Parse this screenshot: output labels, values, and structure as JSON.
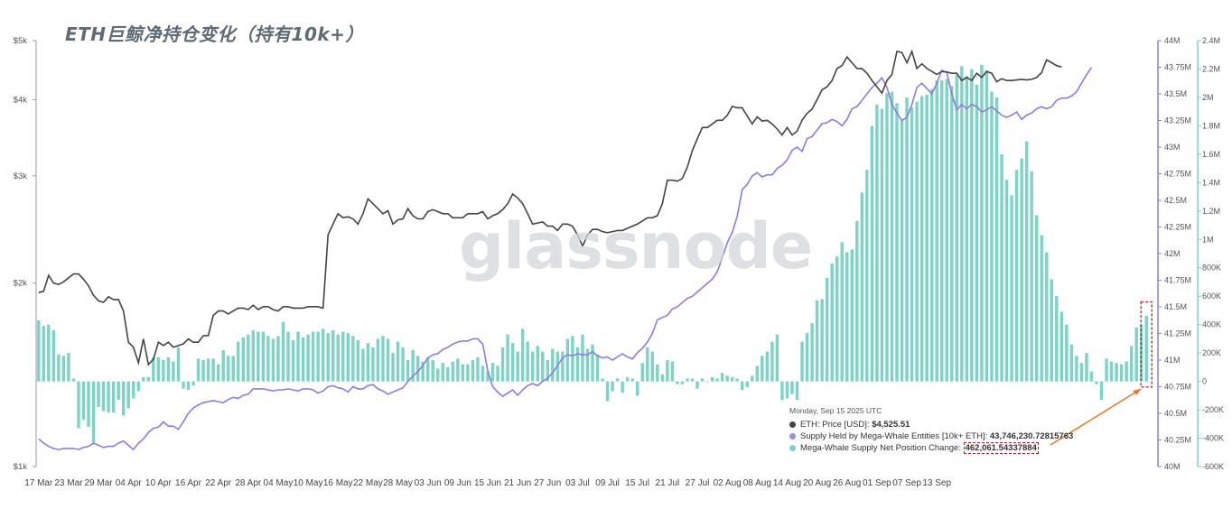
{
  "title": "ETH巨鲸净持仓变化（持有10k+）",
  "watermark": "glassnode",
  "tooltip": {
    "date": "Monday, Sep 15 2025 UTC",
    "rows": [
      {
        "label": "ETH: Price [USD]: ",
        "value": "$4,525.51",
        "color": "#444444"
      },
      {
        "label": "Supply Held by Mega-Whale Entities [10k+ ETH]: ",
        "value": "43,746,230.72815763",
        "color": "#9b8fe0"
      },
      {
        "label": "Mega-Whale Supply Net Position Change: ",
        "value": "462,061.54337884",
        "color": "#7ed3c5"
      }
    ]
  },
  "colors": {
    "price": "#444444",
    "supply": "#8b7de0",
    "bars": "#7ed3c5",
    "highlight": "#b22222",
    "arrow": "#e8772e"
  },
  "chart_data": {
    "type": "bar",
    "x_tick_labels": [
      "17 Mar",
      "23 Mar",
      "29 Mar",
      "04 Apr",
      "10 Apr",
      "16 Apr",
      "22 Apr",
      "28 Apr",
      "04 May",
      "10 May",
      "16 May",
      "22 May",
      "28 May",
      "03 Jun",
      "09 Jun",
      "15 Jun",
      "21 Jun",
      "27 Jun",
      "03 Jul",
      "09 Jul",
      "15 Jul",
      "21 Jul",
      "27 Jul",
      "02 Aug",
      "08 Aug",
      "14 Aug",
      "20 Aug",
      "26 Aug",
      "01 Sep",
      "07 Sep",
      "13 Sep"
    ],
    "price_axis": {
      "scale": "log",
      "ticks": [
        "$1k",
        "$2k",
        "$3k",
        "$4k",
        "$5k"
      ],
      "tick_values": [
        1000,
        2000,
        3000,
        4000,
        5000
      ]
    },
    "supply_axis": {
      "ticks": [
        "40M",
        "40.25M",
        "40.5M",
        "40.75M",
        "41M",
        "41.25M",
        "41.5M",
        "41.75M",
        "42M",
        "42.25M",
        "42.5M",
        "42.75M",
        "43M",
        "43.25M",
        "43.5M",
        "43.75M",
        "44M"
      ],
      "range": [
        40000000,
        44000000
      ]
    },
    "change_axis": {
      "ticks": [
        "-600K",
        "-400K",
        "-200K",
        "0",
        "200K",
        "400K",
        "600K",
        "800K",
        "1M",
        "1.2M",
        "1.4M",
        "1.6M",
        "1.8M",
        "2M",
        "2.2M",
        "2.4M"
      ],
      "range": [
        -600000,
        2400000
      ]
    },
    "series": [
      {
        "name": "ETH: Price [USD]",
        "kind": "line",
        "values": [
          1930,
          1940,
          2060,
          2000,
          1990,
          2010,
          2040,
          2070,
          2070,
          2030,
          1980,
          1910,
          1870,
          1860,
          1900,
          1880,
          1880,
          1800,
          1600,
          1570,
          1480,
          1620,
          1470,
          1500,
          1600,
          1580,
          1600,
          1570,
          1580,
          1590,
          1620,
          1600,
          1600,
          1640,
          1640,
          1770,
          1800,
          1800,
          1780,
          1800,
          1820,
          1820,
          1810,
          1840,
          1810,
          1830,
          1830,
          1810,
          1800,
          1830,
          1830,
          1820,
          1820,
          1820,
          1830,
          1830,
          1830,
          1820,
          2400,
          2500,
          2600,
          2560,
          2570,
          2550,
          2500,
          2600,
          2750,
          2700,
          2650,
          2600,
          2630,
          2500,
          2540,
          2550,
          2650,
          2580,
          2550,
          2550,
          2620,
          2640,
          2620,
          2600,
          2600,
          2560,
          2560,
          2560,
          2600,
          2600,
          2600,
          2620,
          2550,
          2580,
          2600,
          2640,
          2700,
          2800,
          2760,
          2700,
          2600,
          2500,
          2510,
          2520,
          2480,
          2480,
          2440,
          2500,
          2500,
          2480,
          2400,
          2300,
          2400,
          2450,
          2450,
          2430,
          2420,
          2430,
          2440,
          2440,
          2460,
          2480,
          2500,
          2530,
          2560,
          2560,
          2580,
          2700,
          2950,
          2950,
          2940,
          2970,
          3100,
          3300,
          3450,
          3600,
          3600,
          3650,
          3700,
          3700,
          3770,
          3900,
          3880,
          3880,
          3760,
          3650,
          3750,
          3690,
          3700,
          3650,
          3580,
          3500,
          3600,
          3500,
          3550,
          3700,
          3800,
          3860,
          4000,
          4150,
          4200,
          4300,
          4500,
          4550,
          4700,
          4600,
          4500,
          4500,
          4420,
          4300,
          4200,
          4100,
          4300,
          4400,
          4800,
          4780,
          4600,
          4800,
          4500,
          4580,
          4500,
          4450,
          4400,
          4450,
          4440,
          4420,
          4420,
          4300,
          4350,
          4300,
          4420,
          4350,
          4450,
          4420,
          4280,
          4330,
          4300,
          4300,
          4310,
          4320,
          4310,
          4320,
          4350,
          4430,
          4650,
          4600,
          4550,
          4525.51
        ]
      },
      {
        "name": "Supply Held by Mega-Whale Entities [10k+ ETH]",
        "kind": "line",
        "values": [
          40260000,
          40220000,
          40190000,
          40170000,
          40160000,
          40170000,
          40170000,
          40170000,
          40160000,
          40180000,
          40190000,
          40220000,
          40200000,
          40180000,
          40190000,
          40190000,
          40220000,
          40240000,
          40200000,
          40160000,
          40220000,
          40260000,
          40320000,
          40360000,
          40370000,
          40420000,
          40380000,
          40380000,
          40350000,
          40420000,
          40500000,
          40550000,
          40580000,
          40600000,
          40610000,
          40620000,
          40610000,
          40600000,
          40630000,
          40650000,
          40640000,
          40670000,
          40680000,
          40730000,
          40730000,
          40730000,
          40720000,
          40710000,
          40720000,
          40720000,
          40730000,
          40720000,
          40710000,
          40730000,
          40730000,
          40720000,
          40690000,
          40710000,
          40750000,
          40760000,
          40740000,
          40730000,
          40700000,
          40750000,
          40730000,
          40730000,
          40760000,
          40770000,
          40730000,
          40710000,
          40680000,
          40700000,
          40720000,
          40740000,
          40800000,
          40850000,
          40890000,
          40950000,
          41020000,
          41050000,
          41060000,
          41100000,
          41120000,
          41150000,
          41170000,
          41180000,
          41180000,
          41200000,
          41200000,
          41150000,
          40900000,
          40750000,
          40700000,
          40660000,
          40690000,
          40720000,
          40670000,
          40720000,
          40760000,
          40780000,
          40760000,
          40800000,
          40830000,
          40880000,
          40950000,
          41020000,
          41050000,
          41040000,
          41060000,
          41050000,
          41050000,
          41080000,
          41040000,
          41020000,
          41030000,
          41000000,
          41030000,
          41060000,
          41030000,
          41010000,
          41070000,
          41110000,
          41170000,
          41250000,
          41380000,
          41400000,
          41420000,
          41480000,
          41500000,
          41540000,
          41580000,
          41600000,
          41640000,
          41680000,
          41720000,
          41760000,
          41830000,
          41960000,
          42100000,
          42200000,
          42350000,
          42600000,
          42650000,
          42730000,
          42760000,
          42720000,
          42740000,
          42740000,
          42800000,
          42830000,
          42880000,
          42970000,
          43000000,
          42960000,
          43080000,
          43100000,
          43160000,
          43220000,
          43230000,
          43260000,
          43240000,
          43200000,
          43260000,
          43360000,
          43380000,
          43440000,
          43500000,
          43560000,
          43600000,
          43650000,
          43560000,
          43400000,
          43320000,
          43250000,
          43280000,
          43400000,
          43560000,
          43600000,
          43550000,
          43500000,
          43600000,
          43720000,
          43700000,
          43500000,
          43350000,
          43400000,
          43360000,
          43400000,
          43380000,
          43330000,
          43350000,
          43380000,
          43340000,
          43300000,
          43280000,
          43300000,
          43330000,
          43260000,
          43300000,
          43320000,
          43360000,
          43380000,
          43360000,
          43380000,
          43440000,
          43460000,
          43460000,
          43480000,
          43520000,
          43600000,
          43680000,
          43746230.72815763
        ]
      },
      {
        "name": "Mega-Whale Supply Net Position Change",
        "kind": "bar",
        "values": [
          430000,
          390000,
          400000,
          360000,
          190000,
          180000,
          200000,
          20000,
          -330000,
          -270000,
          -320000,
          -430000,
          -180000,
          -210000,
          -220000,
          -220000,
          -130000,
          -240000,
          -190000,
          -120000,
          -70000,
          30000,
          30000,
          170000,
          170000,
          150000,
          170000,
          140000,
          240000,
          -50000,
          -60000,
          -30000,
          160000,
          150000,
          160000,
          160000,
          120000,
          220000,
          180000,
          180000,
          280000,
          310000,
          330000,
          360000,
          350000,
          350000,
          320000,
          300000,
          320000,
          420000,
          350000,
          290000,
          350000,
          310000,
          330000,
          350000,
          350000,
          370000,
          340000,
          360000,
          330000,
          350000,
          340000,
          320000,
          290000,
          230000,
          270000,
          240000,
          300000,
          320000,
          300000,
          200000,
          280000,
          240000,
          150000,
          220000,
          180000,
          140000,
          170000,
          150000,
          90000,
          130000,
          100000,
          140000,
          160000,
          120000,
          120000,
          150000,
          170000,
          110000,
          70000,
          130000,
          110000,
          240000,
          330000,
          270000,
          210000,
          370000,
          280000,
          210000,
          250000,
          210000,
          150000,
          230000,
          210000,
          210000,
          300000,
          320000,
          240000,
          330000,
          230000,
          260000,
          190000,
          20000,
          -140000,
          -70000,
          20000,
          -80000,
          30000,
          20000,
          -100000,
          130000,
          240000,
          210000,
          120000,
          50000,
          150000,
          140000,
          -20000,
          -20000,
          20000,
          20000,
          -50000,
          20000,
          0,
          30000,
          20000,
          60000,
          40000,
          30000,
          20000,
          -60000,
          -40000,
          40000,
          110000,
          180000,
          210000,
          280000,
          330000,
          -130000,
          -120000,
          -90000,
          -130000,
          280000,
          340000,
          410000,
          570000,
          580000,
          730000,
          830000,
          880000,
          980000,
          910000,
          930000,
          1130000,
          1330000,
          1490000,
          1800000,
          1950000,
          1920000,
          2030000,
          2040000,
          1960000,
          1840000,
          2000000,
          1930000,
          1970000,
          2010000,
          2020000,
          2060000,
          2120000,
          2120000,
          2130000,
          2080000,
          2160000,
          2220000,
          2150000,
          2200000,
          2090000,
          2230000,
          2190000,
          2040000,
          2000000,
          1600000,
          1420000,
          1310000,
          1490000,
          1570000,
          1690000,
          1480000,
          1170000,
          1030000,
          910000,
          720000,
          600000,
          490000,
          400000,
          260000,
          180000,
          130000,
          200000,
          70000,
          -20000,
          -130000,
          160000,
          140000,
          130000,
          120000,
          140000,
          250000,
          380000,
          400000,
          462061.54337884
        ]
      }
    ],
    "legend": "tooltip"
  }
}
